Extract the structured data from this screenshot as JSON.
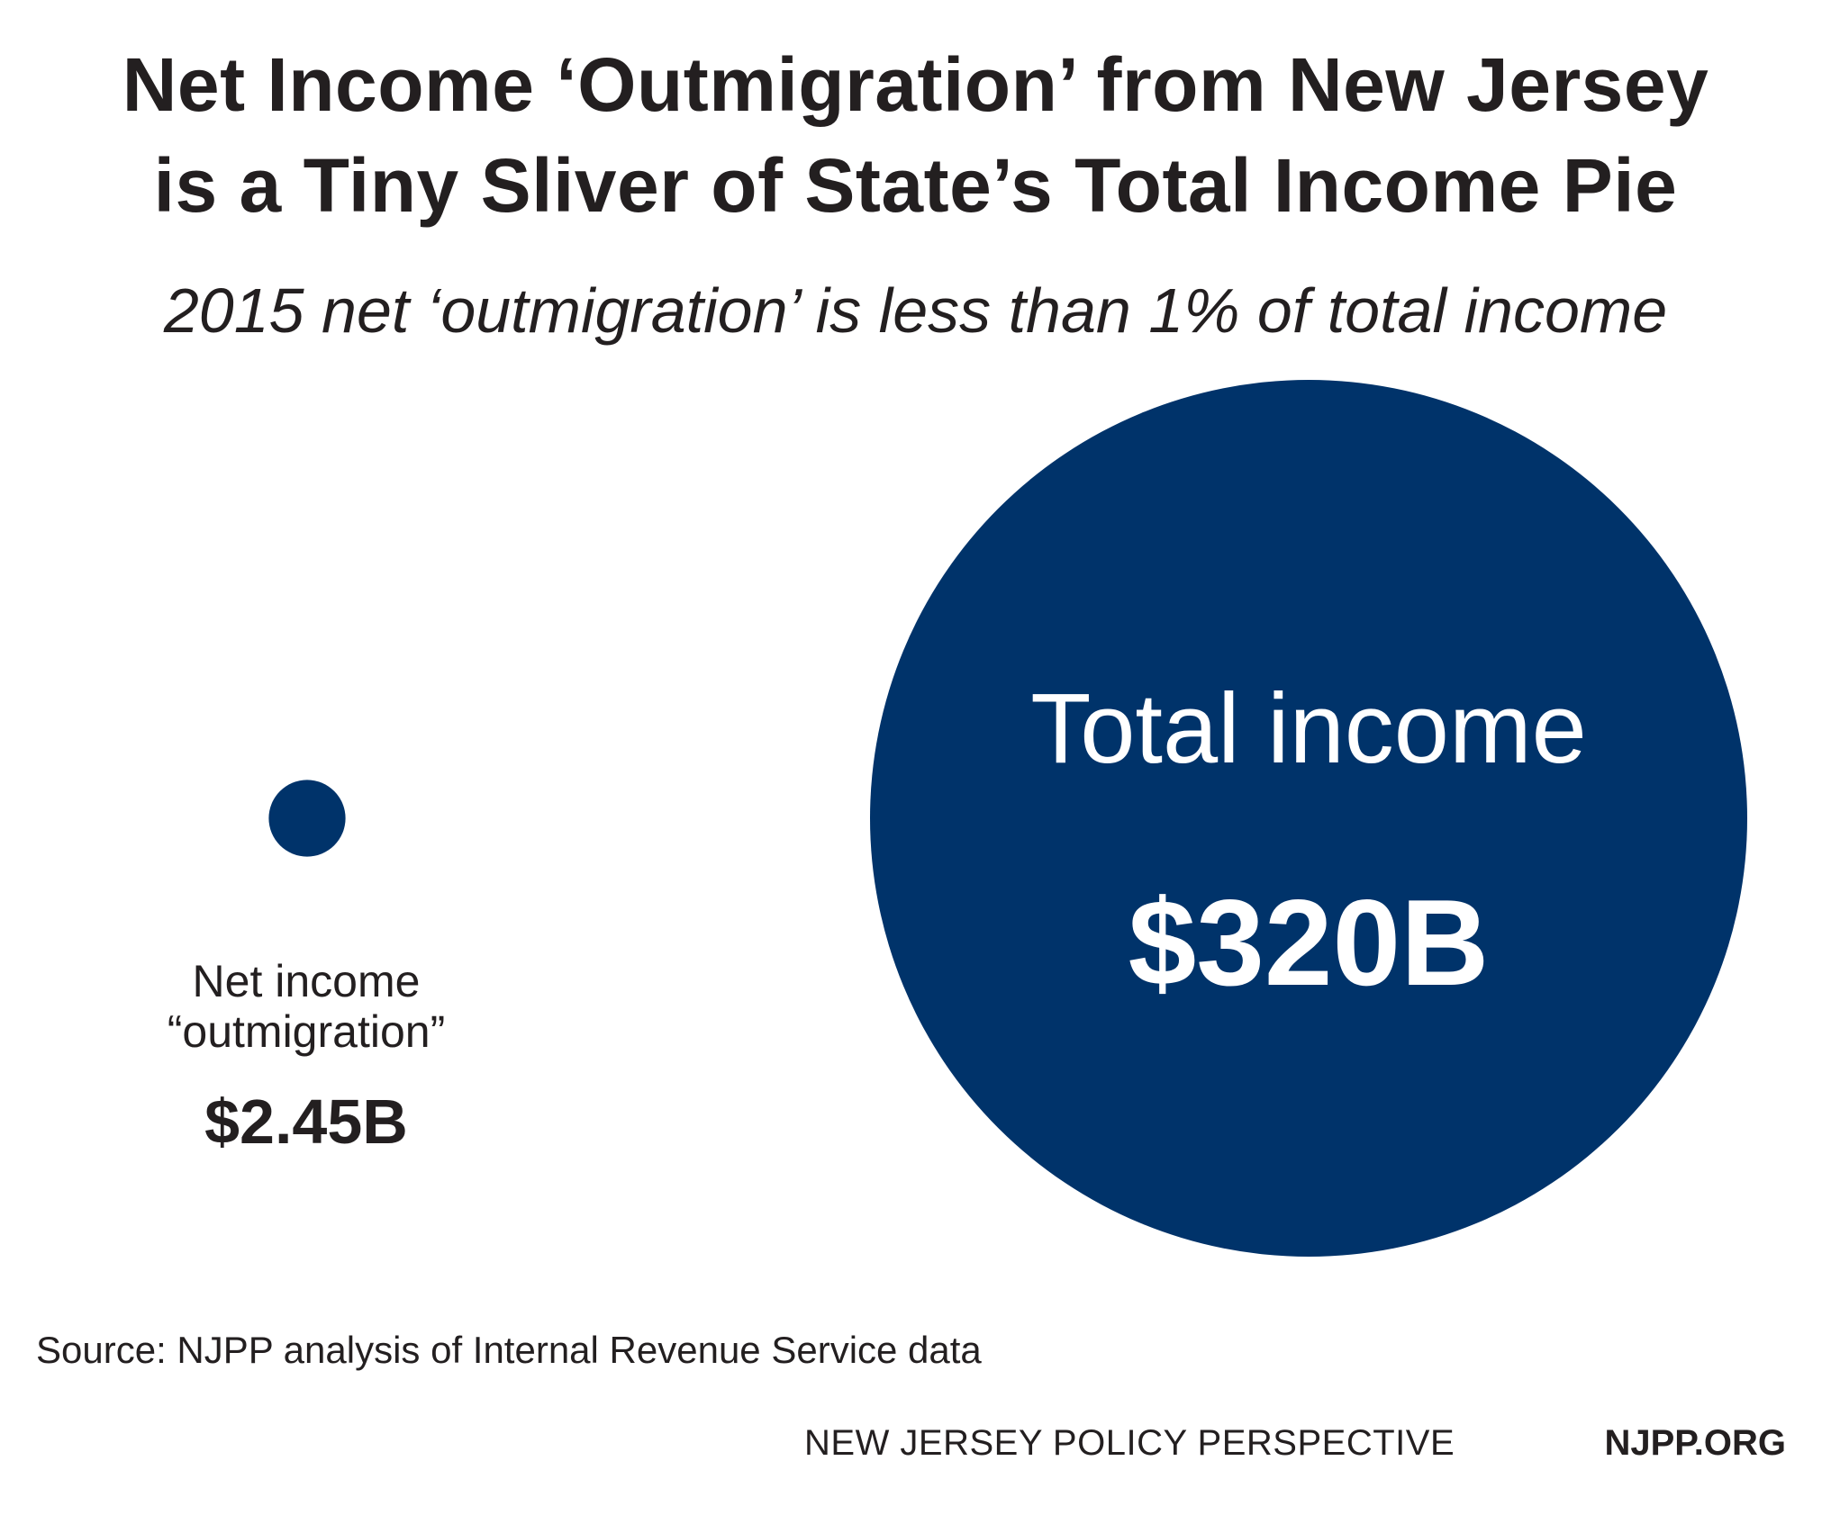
{
  "title": {
    "line1": "Net Income ‘Outmigration’ from New Jersey",
    "line2": "is a Tiny Sliver of State’s Total Income Pie"
  },
  "subtitle": "2015 net ‘outmigration’ is less than 1% of total income",
  "colors": {
    "circle": "#00336a",
    "text": "#231f20",
    "circle_text": "#ffffff"
  },
  "chart_data": {
    "type": "bubble",
    "unit": "billion USD",
    "items": [
      {
        "label_line1": "Net income",
        "label_line2": "“outmigration”",
        "value": 2.45,
        "value_label": "$2.45B"
      },
      {
        "label": "Total income",
        "value": 320,
        "value_label": "$320B"
      }
    ]
  },
  "source": "Source: NJPP analysis of Internal Revenue Service data",
  "footer": {
    "org": "NEW JERSEY POLICY PERSPECTIVE",
    "url": "NJPP.ORG"
  }
}
